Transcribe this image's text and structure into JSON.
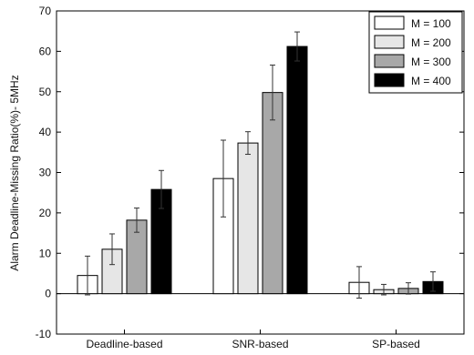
{
  "chart_data": {
    "type": "bar",
    "title": "",
    "xlabel": "",
    "ylabel": "Alarm Deadline-Missing Ratio(%)- 5MHz",
    "ylim": [
      -10,
      70
    ],
    "yticks": [
      -10,
      0,
      10,
      20,
      30,
      40,
      50,
      60,
      70
    ],
    "grid": false,
    "legend_position": "top-right",
    "categories": [
      "Deadline-based",
      "SNR-based",
      "SP-based"
    ],
    "series": [
      {
        "name": "M = 100",
        "color": "#ffffff",
        "values": [
          4.5,
          28.5,
          2.8
        ],
        "error": [
          4.8,
          9.5,
          3.9
        ]
      },
      {
        "name": "M = 200",
        "color": "#e6e6e6",
        "values": [
          11.0,
          37.3,
          1.0
        ],
        "error": [
          3.8,
          2.8,
          1.3
        ]
      },
      {
        "name": "M = 300",
        "color": "#a8a8a8",
        "values": [
          18.2,
          49.8,
          1.3
        ],
        "error": [
          3.0,
          6.8,
          1.4
        ]
      },
      {
        "name": "M = 400",
        "color": "#000000",
        "values": [
          25.8,
          61.2,
          3.0
        ],
        "error": [
          4.7,
          3.6,
          2.4
        ]
      }
    ]
  }
}
